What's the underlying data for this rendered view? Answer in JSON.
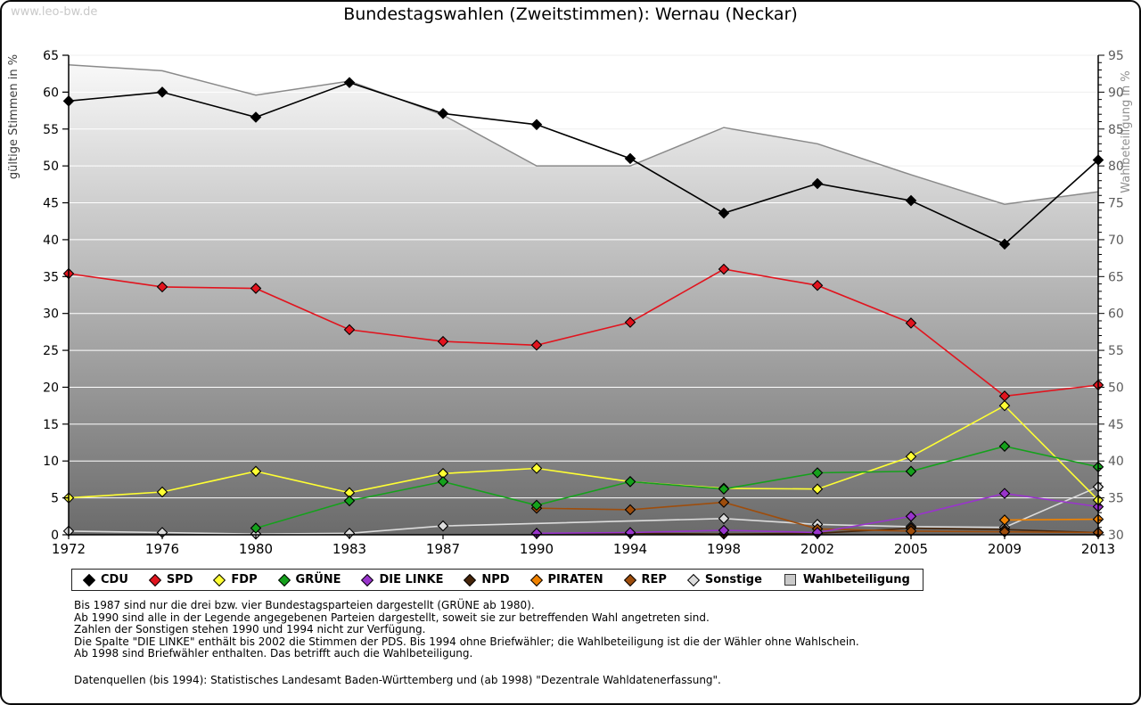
{
  "watermark": "www.leo-bw.de",
  "title": "Bundestagswahlen (Zweitstimmen): Wernau (Neckar)",
  "chart_data": {
    "type": "line",
    "categories": [
      "1972",
      "1976",
      "1980",
      "1983",
      "1987",
      "1990",
      "1994",
      "1998",
      "2002",
      "2005",
      "2009",
      "2013"
    ],
    "left_axis": {
      "label": "gültige Stimmen in %",
      "min": 0,
      "max": 65,
      "step": 5
    },
    "right_axis": {
      "label": "Wahlbeteiligung in %",
      "min": 30,
      "max": 95,
      "step": 5,
      "minor_step": 1
    },
    "grid": true,
    "legend_position": "bottom",
    "series": [
      {
        "name": "CDU",
        "color": "#000000",
        "values": [
          58.8,
          60.0,
          56.6,
          61.3,
          57.1,
          55.6,
          51.0,
          43.6,
          47.6,
          45.3,
          39.4,
          50.8
        ]
      },
      {
        "name": "SPD",
        "color": "#e1141e",
        "values": [
          35.4,
          33.6,
          33.4,
          27.8,
          26.2,
          25.7,
          28.8,
          36.0,
          33.8,
          28.7,
          18.8,
          20.3
        ]
      },
      {
        "name": "FDP",
        "color": "#ffff33",
        "values": [
          5.0,
          5.8,
          8.6,
          5.7,
          8.3,
          9.0,
          7.2,
          6.3,
          6.2,
          10.6,
          17.5,
          4.7
        ]
      },
      {
        "name": "GRÜNE",
        "color": "#15a11c",
        "values": [
          null,
          null,
          0.9,
          4.6,
          7.2,
          4.0,
          7.2,
          6.2,
          8.4,
          8.6,
          12.0,
          9.2
        ]
      },
      {
        "name": "DIE LINKE",
        "color": "#9934cc",
        "values": [
          null,
          null,
          null,
          null,
          null,
          0.2,
          0.3,
          0.6,
          0.3,
          2.5,
          5.6,
          3.8
        ]
      },
      {
        "name": "NPD",
        "color": "#46250a",
        "values": [
          null,
          null,
          null,
          null,
          null,
          0.2,
          0.2,
          0.1,
          0.2,
          0.9,
          0.7,
          0.3
        ]
      },
      {
        "name": "PIRATEN",
        "color": "#f08200",
        "values": [
          null,
          null,
          null,
          null,
          null,
          null,
          null,
          null,
          null,
          null,
          2.0,
          2.1
        ]
      },
      {
        "name": "REP",
        "color": "#9e4d0c",
        "values": [
          null,
          null,
          null,
          null,
          null,
          3.6,
          3.4,
          4.4,
          0.8,
          0.5,
          0.4,
          0.3
        ]
      },
      {
        "name": "Sonstige",
        "color": "#dcdcdc",
        "values": [
          0.5,
          0.3,
          0.1,
          0.2,
          1.2,
          null,
          null,
          2.2,
          1.4,
          1.1,
          1.0,
          6.5
        ]
      }
    ],
    "turnout": {
      "name": "Wahlbeteiligung",
      "axis": "right",
      "values": [
        93.7,
        92.9,
        89.6,
        91.5,
        86.9,
        80.0,
        80.0,
        85.2,
        83.0,
        78.8,
        74.8,
        76.5
      ],
      "fill_top": "#fbfbfb",
      "fill_bottom": "#6b6b6b",
      "outline": "#8a8a8a",
      "legend_swatch": "#c9c9c9"
    }
  },
  "notes": [
    "Bis 1987 sind nur die drei bzw. vier Bundestagsparteien dargestellt (GRÜNE ab 1980).",
    "Ab 1990 sind alle in der Legende angegebenen Parteien dargestellt, soweit sie zur betreffenden Wahl angetreten sind.",
    "Zahlen der Sonstigen stehen 1990 und 1994 nicht zur Verfügung.",
    "Die Spalte \"DIE LINKE\" enthält bis 2002 die Stimmen der PDS. Bis 1994 ohne Briefwähler; die Wahlbeteiligung ist die der Wähler ohne Wahlschein.",
    "Ab 1998 sind Briefwähler enthalten. Das betrifft auch die Wahlbeteiligung."
  ],
  "source": "Datenquellen (bis 1994): Statistisches Landesamt Baden-Württemberg und (ab 1998) \"Dezentrale Wahldatenerfassung\"."
}
